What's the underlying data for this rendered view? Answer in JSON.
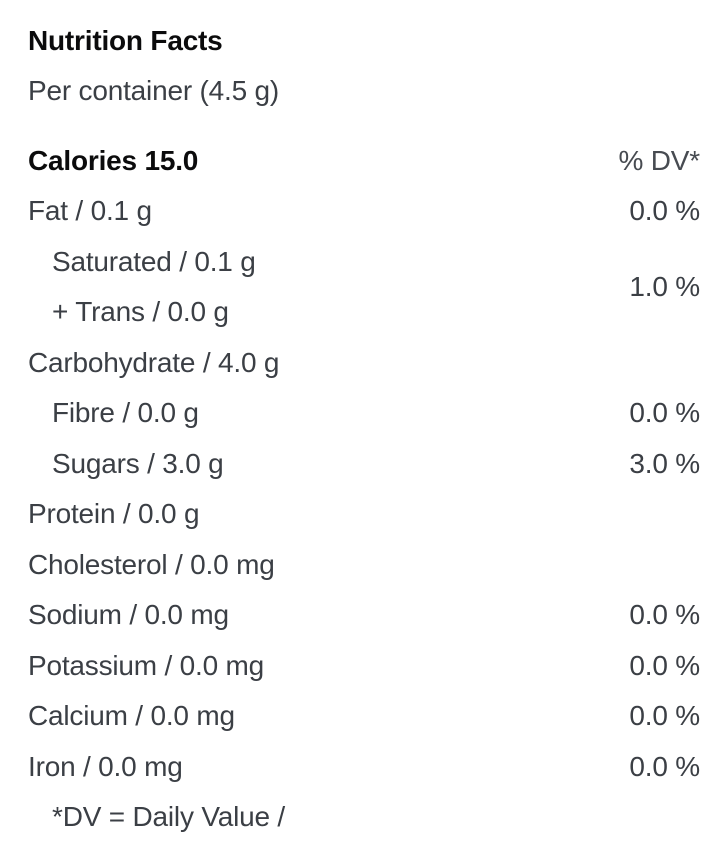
{
  "label": {
    "title": "Nutrition Facts",
    "serving": "Per container (4.5 g)",
    "calories": "Calories 15.0",
    "dv_header": "% DV*",
    "rows": [
      {
        "lines": [
          "Fat / 0.1 g"
        ],
        "indent": false,
        "dv": "0.0 %"
      },
      {
        "lines": [
          "Saturated / 0.1 g",
          "+ Trans / 0.0 g"
        ],
        "indent": true,
        "dv": "1.0 %"
      },
      {
        "lines": [
          "Carbohydrate / 4.0 g"
        ],
        "indent": false,
        "dv": ""
      },
      {
        "lines": [
          "Fibre / 0.0 g"
        ],
        "indent": true,
        "dv": "0.0 %"
      },
      {
        "lines": [
          "Sugars / 3.0 g"
        ],
        "indent": true,
        "dv": "3.0 %"
      },
      {
        "lines": [
          "Protein / 0.0 g"
        ],
        "indent": false,
        "dv": ""
      },
      {
        "lines": [
          "Cholesterol / 0.0 mg"
        ],
        "indent": false,
        "dv": ""
      },
      {
        "lines": [
          "Sodium / 0.0 mg"
        ],
        "indent": false,
        "dv": "0.0 %"
      },
      {
        "lines": [
          "Potassium / 0.0 mg"
        ],
        "indent": false,
        "dv": "0.0 %"
      },
      {
        "lines": [
          "Calcium / 0.0 mg"
        ],
        "indent": false,
        "dv": "0.0 %"
      },
      {
        "lines": [
          "Iron / 0.0 mg"
        ],
        "indent": false,
        "dv": "0.0 %"
      },
      {
        "lines": [
          "*DV = Daily Value /"
        ],
        "indent": true,
        "dv": ""
      }
    ],
    "colors": {
      "title_text": "#0b0b0c",
      "body_text": "#3b3f45",
      "background": "#ffffff"
    }
  }
}
